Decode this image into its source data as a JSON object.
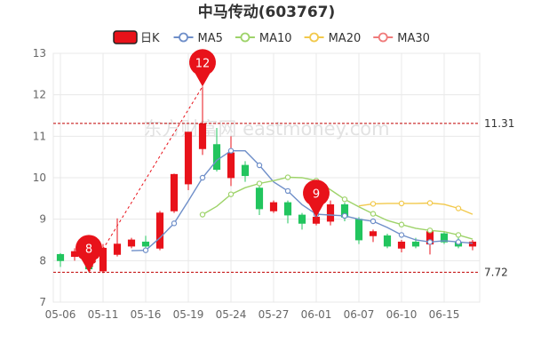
{
  "chart_data": {
    "type": "candlestick",
    "title": "中马传动(603767)",
    "watermark": "东方财富网 eastmoney.com",
    "ylim": [
      7,
      13
    ],
    "yticks": [
      "7",
      "8",
      "9",
      "10",
      "11",
      "12",
      "13"
    ],
    "xtick_labels": [
      {
        "date": "05-06",
        "index": 0
      },
      {
        "date": "05-11",
        "index": 3
      },
      {
        "date": "05-16",
        "index": 6
      },
      {
        "date": "05-19",
        "index": 9
      },
      {
        "date": "05-24",
        "index": 12
      },
      {
        "date": "05-27",
        "index": 15
      },
      {
        "date": "06-01",
        "index": 18
      },
      {
        "date": "06-07",
        "index": 21
      },
      {
        "date": "06-10",
        "index": 24
      },
      {
        "date": "06-15",
        "index": 27
      }
    ],
    "legend": [
      {
        "key": "kline",
        "label": "日K",
        "color": "#e8121a"
      },
      {
        "key": "ma5",
        "label": "MA5",
        "color": "#6f8fc9"
      },
      {
        "key": "ma10",
        "label": "MA10",
        "color": "#9ed36a"
      },
      {
        "key": "ma20",
        "label": "MA20",
        "color": "#f2c94c"
      },
      {
        "key": "ma30",
        "label": "MA30",
        "color": "#f07b7b"
      }
    ],
    "colors": {
      "up": "#e8121a",
      "down": "#22c55e",
      "grid": "#e8e8e8",
      "refline": "#c00000",
      "trend": "#e8121a"
    },
    "candles": [
      {
        "o": 8.15,
        "c": 8.0,
        "h": 8.18,
        "l": 7.85
      },
      {
        "o": 8.1,
        "c": 8.22,
        "h": 8.3,
        "l": 8.0
      },
      {
        "o": 8.2,
        "c": 7.8,
        "h": 8.25,
        "l": 7.72
      },
      {
        "o": 7.75,
        "c": 8.3,
        "h": 8.4,
        "l": 7.7
      },
      {
        "o": 8.15,
        "c": 8.4,
        "h": 9.02,
        "l": 8.1
      },
      {
        "o": 8.35,
        "c": 8.5,
        "h": 8.55,
        "l": 8.3
      },
      {
        "o": 8.45,
        "c": 8.35,
        "h": 8.6,
        "l": 8.3
      },
      {
        "o": 8.3,
        "c": 9.15,
        "h": 9.2,
        "l": 8.25
      },
      {
        "o": 9.2,
        "c": 10.08,
        "h": 10.1,
        "l": 9.15
      },
      {
        "o": 9.85,
        "c": 11.1,
        "h": 11.1,
        "l": 9.7
      },
      {
        "o": 10.7,
        "c": 11.3,
        "h": 12.2,
        "l": 10.55
      },
      {
        "o": 10.8,
        "c": 10.2,
        "h": 11.2,
        "l": 10.15
      },
      {
        "o": 10.0,
        "c": 10.6,
        "h": 11.0,
        "l": 9.8
      },
      {
        "o": 10.3,
        "c": 10.05,
        "h": 10.4,
        "l": 9.9
      },
      {
        "o": 9.75,
        "c": 9.25,
        "h": 9.8,
        "l": 9.1
      },
      {
        "o": 9.2,
        "c": 9.4,
        "h": 9.45,
        "l": 9.15
      },
      {
        "o": 9.4,
        "c": 9.1,
        "h": 9.45,
        "l": 8.9
      },
      {
        "o": 9.1,
        "c": 8.9,
        "h": 9.15,
        "l": 8.75
      },
      {
        "o": 8.9,
        "c": 9.05,
        "h": 9.1,
        "l": 8.85
      },
      {
        "o": 8.95,
        "c": 9.35,
        "h": 9.45,
        "l": 8.85
      },
      {
        "o": 9.35,
        "c": 9.05,
        "h": 9.4,
        "l": 8.95
      },
      {
        "o": 9.0,
        "c": 8.5,
        "h": 9.05,
        "l": 8.4
      },
      {
        "o": 8.6,
        "c": 8.7,
        "h": 8.75,
        "l": 8.45
      },
      {
        "o": 8.6,
        "c": 8.35,
        "h": 8.65,
        "l": 8.3
      },
      {
        "o": 8.3,
        "c": 8.45,
        "h": 8.5,
        "l": 8.2
      },
      {
        "o": 8.45,
        "c": 8.35,
        "h": 8.55,
        "l": 8.3
      },
      {
        "o": 8.4,
        "c": 8.7,
        "h": 8.75,
        "l": 8.15
      },
      {
        "o": 8.65,
        "c": 8.45,
        "h": 8.7,
        "l": 8.4
      },
      {
        "o": 8.45,
        "c": 8.35,
        "h": 8.55,
        "l": 8.3
      },
      {
        "o": 8.35,
        "c": 8.45,
        "h": 8.5,
        "l": 8.25
      }
    ],
    "ma5": [
      null,
      null,
      null,
      null,
      null,
      8.24,
      8.25,
      8.55,
      8.9,
      9.44,
      10.0,
      10.42,
      10.65,
      10.65,
      10.3,
      9.9,
      9.68,
      9.35,
      9.12,
      9.1,
      9.08,
      9.0,
      8.95,
      8.8,
      8.62,
      8.5,
      8.45,
      8.48,
      8.45,
      8.42
    ],
    "ma10": [
      null,
      null,
      null,
      null,
      null,
      null,
      null,
      null,
      null,
      null,
      9.11,
      9.31,
      9.6,
      9.76,
      9.86,
      9.93,
      10.01,
      10.0,
      9.93,
      9.71,
      9.48,
      9.3,
      9.13,
      8.97,
      8.87,
      8.78,
      8.73,
      8.7,
      8.62,
      8.52
    ],
    "ma20": [
      null,
      null,
      null,
      null,
      null,
      null,
      null,
      null,
      null,
      null,
      null,
      null,
      null,
      null,
      null,
      null,
      null,
      null,
      null,
      null,
      null,
      9.32,
      9.37,
      9.38,
      9.38,
      9.38,
      9.39,
      9.36,
      9.26,
      9.12
    ],
    "ma30": [],
    "ma_marker_step": 2,
    "reference_lines": [
      {
        "value": 11.31,
        "label": "11.31"
      },
      {
        "value": 7.72,
        "label": "7.72"
      }
    ],
    "pins": [
      {
        "index": 10,
        "value": 12.2,
        "label": "12"
      },
      {
        "index": 2,
        "value": 7.72,
        "label": "8"
      },
      {
        "index": 18,
        "value": 9.05,
        "label": "9"
      }
    ],
    "trend_line": [
      {
        "index": 2,
        "value": 7.72
      },
      {
        "index": 10,
        "value": 12.2
      }
    ]
  }
}
